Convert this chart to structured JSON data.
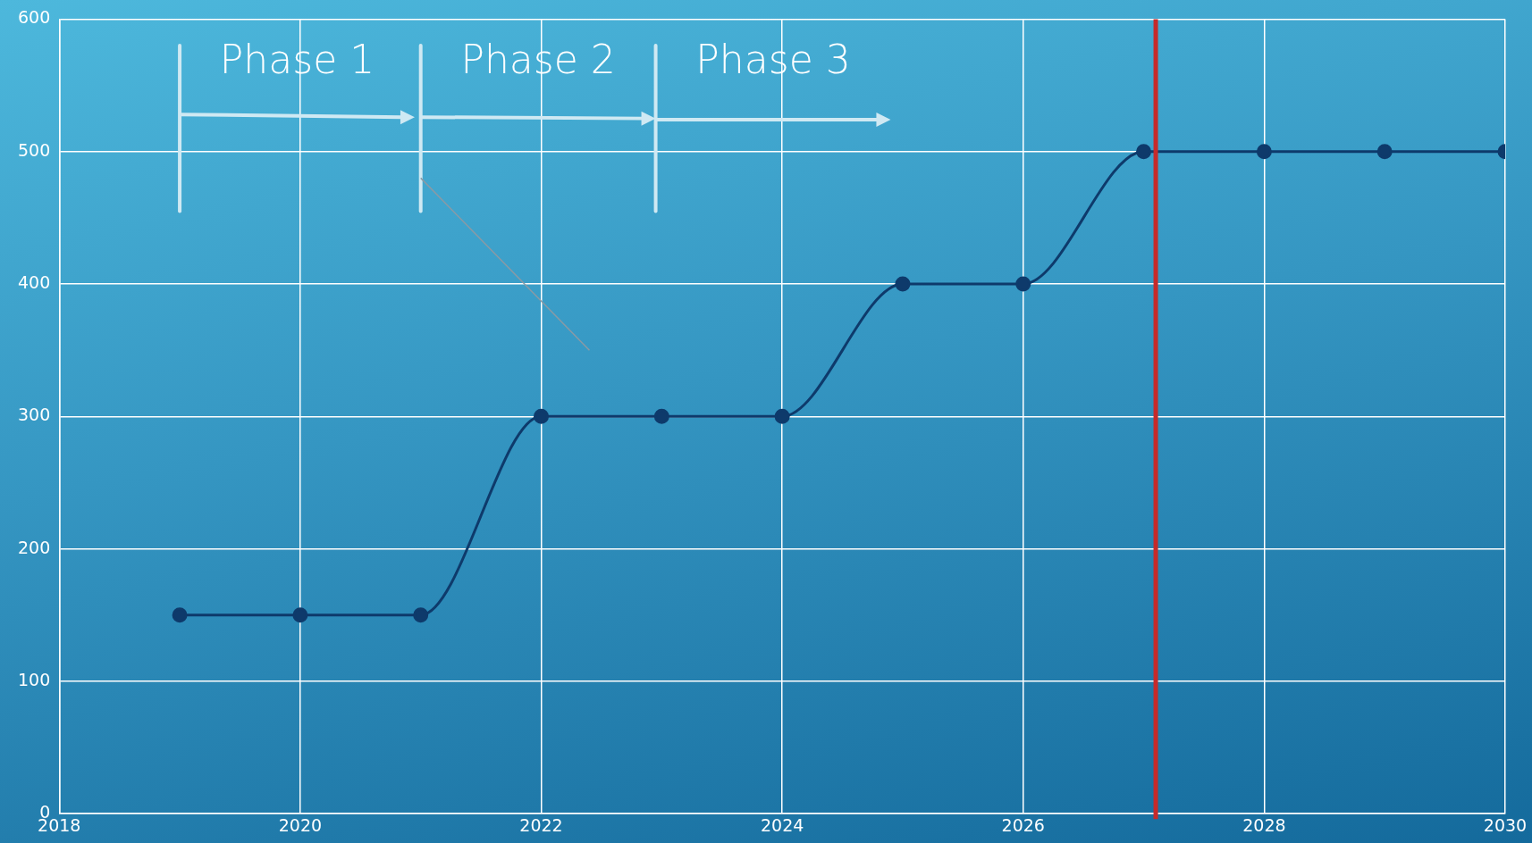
{
  "chart_data": {
    "type": "line",
    "x": [
      2019,
      2020,
      2021,
      2022,
      2023,
      2024,
      2025,
      2026,
      2027,
      2028,
      2029,
      2030
    ],
    "series": [
      {
        "color": "#0e3a6b",
        "values": [
          150,
          150,
          150,
          300,
          300,
          300,
          400,
          400,
          500,
          500,
          500,
          500
        ]
      }
    ],
    "xlim": [
      2018,
      2030
    ],
    "xticks": [
      2018,
      2020,
      2022,
      2024,
      2026,
      2028,
      2030
    ],
    "ylim": [
      0,
      600
    ],
    "yticks": [
      0,
      100,
      200,
      300,
      400,
      500,
      600
    ],
    "grid": true,
    "legend": false,
    "marker": "circle",
    "line_style": "solid",
    "ref_lines": [
      {
        "axis": "x",
        "value": 2027.1,
        "color": "#c62a2a"
      }
    ],
    "annotations": [
      "Phase 1",
      "Phase 2",
      "Phase 3"
    ]
  }
}
